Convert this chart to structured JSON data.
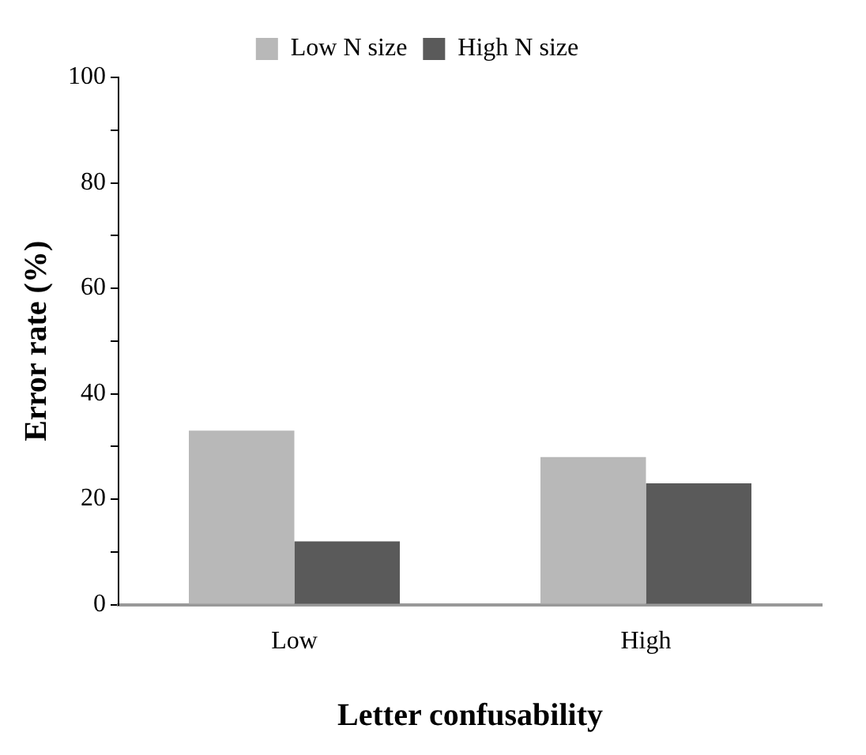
{
  "chart_data": {
    "type": "bar",
    "xlabel": "Letter confusability",
    "ylabel": "Error rate (%)",
    "categories": [
      "Low",
      "High"
    ],
    "series": [
      {
        "name": "Low N size",
        "color": "#b8b8b8",
        "values": [
          33,
          28
        ]
      },
      {
        "name": "High N size",
        "color": "#5a5a5a",
        "values": [
          12,
          23
        ]
      }
    ],
    "ylim": [
      0,
      100
    ],
    "yticks": [
      0,
      {
        "value": 10,
        "label": null
      },
      20,
      {
        "value": 30,
        "label": null
      },
      40,
      {
        "value": 50,
        "label": null
      },
      60,
      {
        "value": 70,
        "label": null
      },
      80,
      {
        "value": 90,
        "label": null
      },
      100
    ],
    "grid": false,
    "legend": "top"
  }
}
